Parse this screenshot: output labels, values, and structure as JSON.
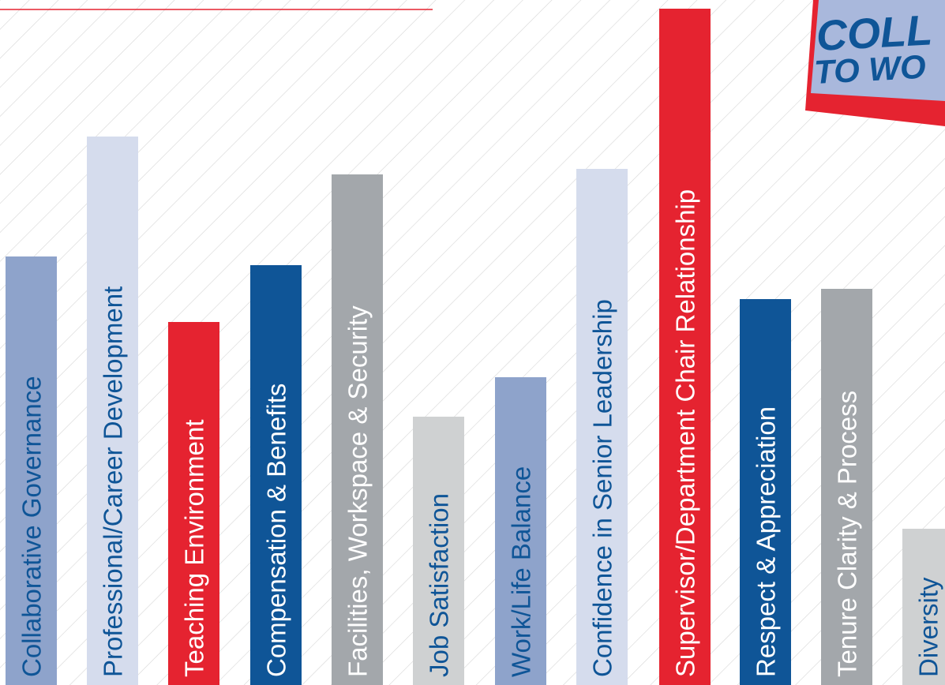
{
  "bars": [
    {
      "label": "Collaborative Governance"
    },
    {
      "label": "Professional/Career Development"
    },
    {
      "label": "Teaching Environment"
    },
    {
      "label": "Compensation & Benefits"
    },
    {
      "label": "Facilities, Workspace & Security"
    },
    {
      "label": "Job Satisfaction"
    },
    {
      "label": "Work/Life Balance"
    },
    {
      "label": "Confidence in Senior Leadership"
    },
    {
      "label": "Supervisor/Department Chair Relationship"
    },
    {
      "label": "Respect & Appreciation"
    },
    {
      "label": "Tenure Clarity & Process"
    },
    {
      "label": "Diversity"
    }
  ],
  "badge": {
    "line1": "COLL",
    "line2": "TO WO"
  }
}
